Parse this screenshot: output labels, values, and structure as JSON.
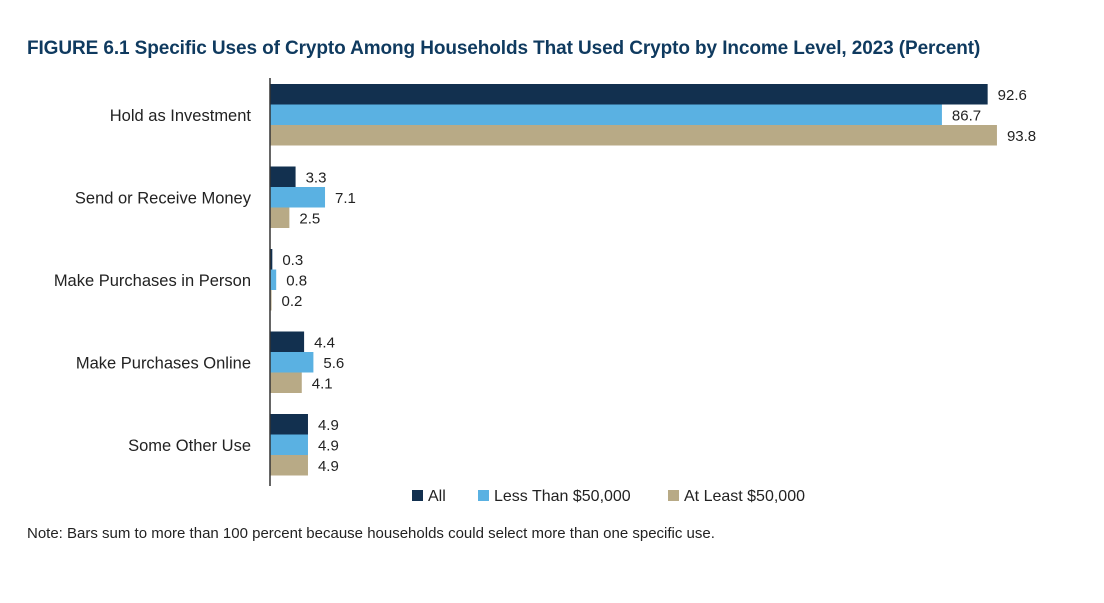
{
  "figure": {
    "title": "FIGURE 6.1 Specific Uses of Crypto Among Households That Used Crypto by Income Level, 2023 (Percent)",
    "note": "Note: Bars sum to more than 100 percent because households could select more than one specific use."
  },
  "colors": {
    "title": "#0f3a5f",
    "all": "#12304f",
    "less_than_50k": "#5ab1e2",
    "at_least_50k": "#b8aa86",
    "axis": "#333333"
  },
  "chart_data": {
    "type": "bar",
    "orientation": "horizontal",
    "title": "FIGURE 6.1 Specific Uses of Crypto Among Households That Used Crypto by Income Level, 2023 (Percent)",
    "xlabel": "",
    "ylabel": "",
    "xlim": [
      0,
      100
    ],
    "grid": false,
    "legend_position": "bottom",
    "categories": [
      "Hold as Investment",
      "Send or Receive Money",
      "Make Purchases in Person",
      "Make Purchases Online",
      "Some Other Use"
    ],
    "series": [
      {
        "key": "all",
        "name": "All",
        "values": [
          92.6,
          3.3,
          0.3,
          4.4,
          4.9
        ]
      },
      {
        "key": "less_than_50k",
        "name": "Less Than $50,000",
        "values": [
          86.7,
          7.1,
          0.8,
          5.6,
          4.9
        ]
      },
      {
        "key": "at_least_50k",
        "name": "At Least $50,000",
        "values": [
          93.8,
          2.5,
          0.2,
          4.1,
          4.9
        ]
      }
    ],
    "labels": [
      [
        "92.6",
        "3.3",
        "0.3",
        "4.4",
        "4.9"
      ],
      [
        "86.7",
        "7.1",
        "0.8",
        "5.6",
        "4.9"
      ],
      [
        "93.8",
        "2.5",
        "0.2",
        "4.1",
        "4.9"
      ]
    ]
  }
}
